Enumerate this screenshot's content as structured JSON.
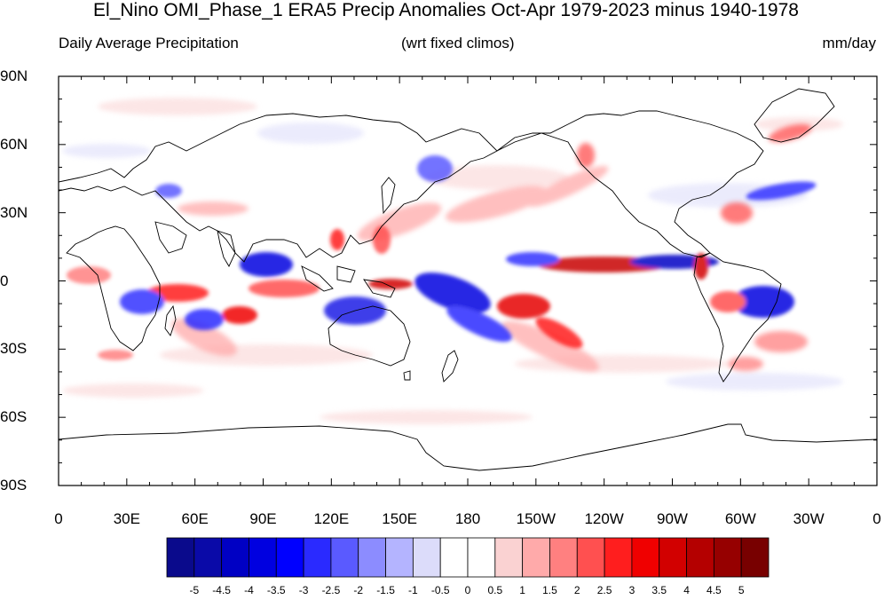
{
  "title": "El_Nino OMI_Phase_1 ERA5 Precip Anomalies Oct-Apr 1979-2023 minus 1940-1978",
  "left_subtitle": "Daily Average Precipitation",
  "center_subtitle": "(wrt fixed climos)",
  "right_subtitle": "mm/day",
  "lat_labels": [
    "90N",
    "60N",
    "30N",
    "0",
    "30S",
    "60S",
    "90S"
  ],
  "lon_labels": [
    "0",
    "30E",
    "60E",
    "90E",
    "120E",
    "150E",
    "180",
    "150W",
    "120W",
    "90W",
    "60W",
    "30W",
    "0"
  ],
  "colorbar": {
    "labels": [
      "-5",
      "-4.5",
      "-4",
      "-3.5",
      "-3",
      "-2.5",
      "-2",
      "-1.5",
      "-1",
      "-0.5",
      "0",
      "0.5",
      "1",
      "1.5",
      "2",
      "2.5",
      "3",
      "3.5",
      "4",
      "4.5",
      "5"
    ],
    "colors": [
      "#0a0a8c",
      "#0a0aa8",
      "#0000c4",
      "#0000e0",
      "#0000ff",
      "#2a2aff",
      "#5a5aff",
      "#8c8cff",
      "#b4b4ff",
      "#dcdcfa",
      "#ffffff",
      "#ffffff",
      "#fad2d2",
      "#ffaaaa",
      "#ff8080",
      "#ff5050",
      "#ff1e1e",
      "#f00000",
      "#d20000",
      "#b40000",
      "#960000",
      "#780000"
    ]
  }
}
